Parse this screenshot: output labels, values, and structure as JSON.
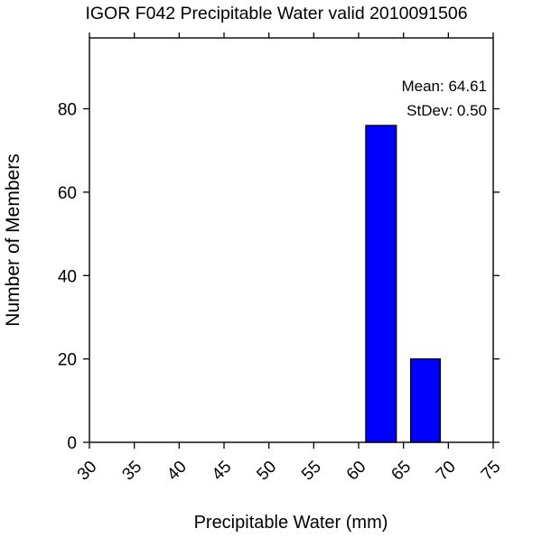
{
  "chart_data": {
    "type": "bar",
    "title": "IGOR F042 Precipitable Water valid 2010091506",
    "xlabel": "Precipitable Water (mm)",
    "ylabel": "Number of Members",
    "xlim": [
      30,
      75
    ],
    "ylim": [
      0,
      97
    ],
    "x_ticks": [
      "30",
      "35",
      "40",
      "45",
      "50",
      "55",
      "60",
      "65",
      "70",
      "75"
    ],
    "y_ticks": [
      "0",
      "20",
      "40",
      "60",
      "80"
    ],
    "bars": [
      {
        "x_start": 60.8,
        "x_end": 64.2,
        "value": 76
      },
      {
        "x_start": 65.8,
        "x_end": 69.1,
        "value": 20
      }
    ],
    "bar_color": "#0000ff",
    "grid": false,
    "annotations": {
      "mean": "Mean: 64.61",
      "stdev": "StDev: 0.50"
    }
  }
}
